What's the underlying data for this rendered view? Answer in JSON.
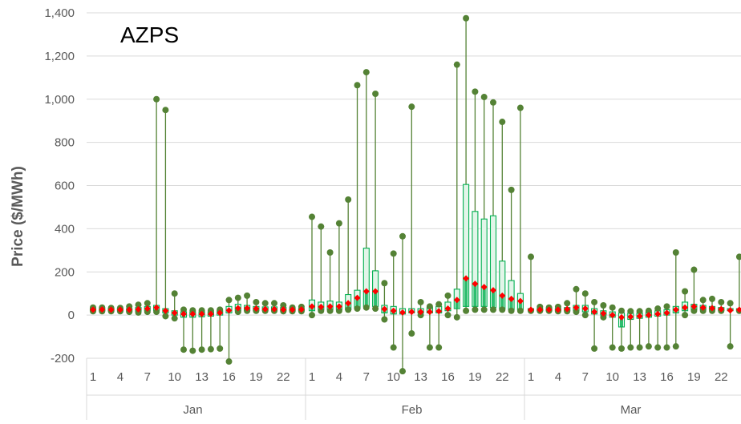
{
  "chart_data": {
    "type": "boxplot",
    "title": "AZPS",
    "ylabel": "Price ($/MWh)",
    "xlabel": "",
    "ylim": [
      -200,
      1400
    ],
    "yticks": [
      -200,
      0,
      200,
      400,
      600,
      800,
      1000,
      1200,
      1400
    ],
    "ytick_labels": [
      "-200",
      "0",
      "200",
      "400",
      "600",
      "800",
      "1,000",
      "1,200",
      "1,400"
    ],
    "grid": true,
    "colors": {
      "whisker": "#548235",
      "marker": "#548235",
      "box": "#00b050",
      "mean": "#ff0000"
    },
    "groups": [
      {
        "month": "Jan",
        "day_labels": [
          "1",
          "",
          "",
          "4",
          "",
          "",
          "7",
          "",
          "",
          "10",
          "",
          "",
          "13",
          "",
          "",
          "16",
          "",
          "",
          "19",
          "",
          "",
          "22",
          "",
          ""
        ],
        "max": [
          35,
          35,
          33,
          33,
          40,
          48,
          55,
          1000,
          950,
          100,
          25,
          22,
          22,
          22,
          25,
          70,
          80,
          90,
          60,
          55,
          55,
          45,
          35,
          38
        ],
        "min": [
          18,
          18,
          18,
          18,
          15,
          12,
          15,
          15,
          -5,
          -15,
          -160,
          -165,
          -160,
          -158,
          -155,
          -215,
          15,
          20,
          20,
          20,
          20,
          18,
          18,
          18
        ],
        "q1": [
          20,
          20,
          20,
          20,
          18,
          18,
          20,
          20,
          10,
          0,
          -10,
          -10,
          -8,
          -5,
          0,
          10,
          20,
          22,
          22,
          22,
          20,
          20,
          20,
          20
        ],
        "q3": [
          30,
          30,
          30,
          30,
          30,
          35,
          40,
          45,
          30,
          20,
          15,
          15,
          15,
          15,
          20,
          40,
          50,
          45,
          40,
          38,
          38,
          35,
          30,
          30
        ],
        "mean": [
          25,
          26,
          25,
          25,
          25,
          27,
          30,
          35,
          20,
          10,
          5,
          5,
          5,
          5,
          10,
          22,
          32,
          32,
          30,
          28,
          28,
          26,
          25,
          26
        ]
      },
      {
        "month": "Feb",
        "day_labels": [
          "1",
          "",
          "",
          "4",
          "",
          "",
          "7",
          "",
          "",
          "10",
          "",
          "",
          "13",
          "",
          "",
          "16",
          "",
          "",
          "19",
          "",
          "",
          "22",
          "",
          ""
        ],
        "max": [
          455,
          410,
          290,
          425,
          535,
          1065,
          1125,
          1025,
          148,
          285,
          365,
          965,
          60,
          40,
          50,
          90,
          1160,
          1375,
          1035,
          1010,
          985,
          895,
          580,
          960
        ],
        "min": [
          0,
          20,
          20,
          20,
          25,
          30,
          35,
          30,
          -20,
          -150,
          -260,
          -85,
          0,
          -150,
          -150,
          0,
          -10,
          20,
          25,
          25,
          25,
          25,
          20,
          20
        ],
        "q1": [
          20,
          25,
          25,
          25,
          25,
          30,
          40,
          40,
          10,
          5,
          5,
          10,
          10,
          10,
          10,
          20,
          30,
          40,
          40,
          40,
          35,
          30,
          25,
          25
        ],
        "q3": [
          70,
          60,
          65,
          60,
          95,
          115,
          310,
          205,
          45,
          40,
          30,
          30,
          30,
          35,
          40,
          60,
          120,
          605,
          480,
          445,
          460,
          250,
          160,
          100
        ],
        "mean": [
          40,
          38,
          40,
          40,
          55,
          80,
          110,
          110,
          28,
          20,
          12,
          15,
          15,
          15,
          18,
          30,
          70,
          170,
          145,
          130,
          115,
          90,
          75,
          65
        ]
      },
      {
        "month": "Mar",
        "day_labels": [
          "1",
          "",
          "",
          "4",
          "",
          "",
          "7",
          "",
          "",
          "10",
          "",
          "",
          "13",
          "",
          "",
          "16",
          "",
          "",
          "19",
          "",
          "",
          "22",
          "",
          ""
        ],
        "max": [
          270,
          38,
          35,
          38,
          55,
          120,
          100,
          60,
          45,
          35,
          20,
          18,
          18,
          20,
          30,
          40,
          290,
          110,
          210,
          70,
          75,
          60,
          55,
          270
        ],
        "min": [
          20,
          20,
          20,
          18,
          18,
          15,
          0,
          -155,
          -10,
          -150,
          -155,
          -150,
          -150,
          -145,
          -150,
          -150,
          -145,
          0,
          20,
          20,
          20,
          20,
          -145,
          20
        ],
        "q1": [
          20,
          20,
          20,
          20,
          20,
          20,
          15,
          5,
          0,
          -10,
          -55,
          -20,
          -15,
          -10,
          -5,
          0,
          10,
          20,
          25,
          25,
          25,
          22,
          20,
          20
        ],
        "q3": [
          30,
          30,
          30,
          30,
          35,
          45,
          45,
          30,
          20,
          15,
          10,
          10,
          10,
          15,
          20,
          25,
          40,
          60,
          50,
          45,
          40,
          35,
          30,
          30
        ],
        "mean": [
          25,
          25,
          25,
          25,
          28,
          35,
          30,
          15,
          8,
          0,
          -10,
          -8,
          -5,
          0,
          5,
          10,
          25,
          35,
          40,
          35,
          32,
          28,
          22,
          25
        ]
      }
    ]
  }
}
